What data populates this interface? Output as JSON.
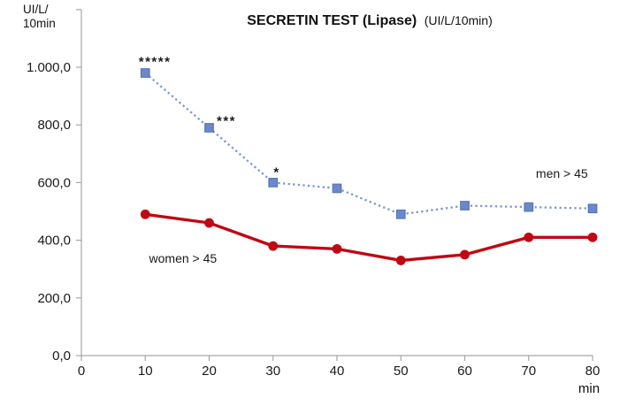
{
  "chart_data": {
    "type": "line",
    "title": "SECRETIN TEST (Lipase)",
    "title_unit": "(UI/L/10min)",
    "grid": false,
    "legend_position": "inline-labels",
    "colors": {
      "axis": "#A6A6A6",
      "text": "#1A1A1A"
    },
    "y_axis": {
      "unit_lines": [
        "UI/L/",
        "10min"
      ],
      "lim": [
        0,
        1200
      ],
      "ticks": [
        {
          "value": 0,
          "label": "0,0"
        },
        {
          "value": 200,
          "label": "200,0"
        },
        {
          "value": 400,
          "label": "400,0"
        },
        {
          "value": 600,
          "label": "600,0"
        },
        {
          "value": 800,
          "label": "800,0"
        },
        {
          "value": 1000,
          "label": "1.000,0"
        }
      ]
    },
    "x_axis": {
      "unit": "min",
      "lim": [
        0,
        80
      ],
      "ticks": [
        {
          "value": 0,
          "label": "0"
        },
        {
          "value": 10,
          "label": "10"
        },
        {
          "value": 20,
          "label": "20"
        },
        {
          "value": 30,
          "label": "30"
        },
        {
          "value": 40,
          "label": "40"
        },
        {
          "value": 50,
          "label": "50"
        },
        {
          "value": 60,
          "label": "60"
        },
        {
          "value": 70,
          "label": "70"
        },
        {
          "value": 80,
          "label": "80"
        }
      ]
    },
    "x": [
      10,
      20,
      30,
      40,
      50,
      60,
      70,
      80
    ],
    "series": [
      {
        "name": "men > 45",
        "values": [
          980,
          790,
          600,
          580,
          490,
          520,
          515,
          510
        ],
        "color": "#6C88CA",
        "marker_edge": "#5273B4",
        "line_color": "#7D97D2",
        "line_style": "dotted",
        "marker": "square",
        "label_anchor": {
          "x": 75.2,
          "y": 632
        }
      },
      {
        "name": "women > 45",
        "values": [
          490,
          460,
          380,
          370,
          330,
          350,
          410,
          410
        ],
        "color": "#C00714",
        "marker_edge": "#C00714",
        "line_color": "#C00714",
        "line_style": "solid",
        "marker": "circle",
        "label_anchor": {
          "x": 15.9,
          "y": 337
        }
      }
    ],
    "annotations": [
      {
        "text": "*****",
        "x": 11.5,
        "y": 1031
      },
      {
        "text": "***",
        "x": 22.7,
        "y": 825
      },
      {
        "text": "*",
        "x": 30.6,
        "y": 647
      }
    ]
  }
}
